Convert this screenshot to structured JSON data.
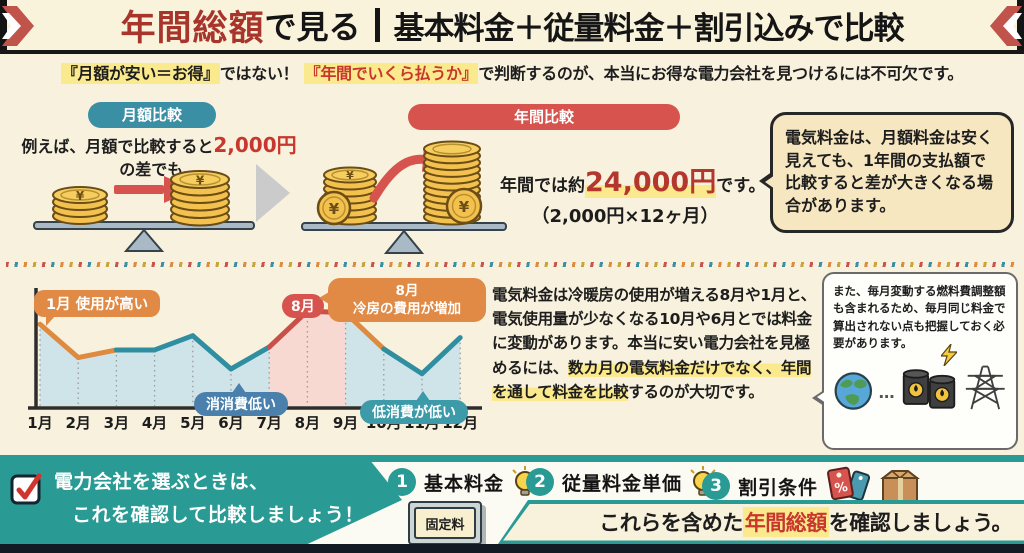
{
  "header": {
    "title_em": "年間総額",
    "title_rest": "で見る",
    "title_right": "基本料金＋従量料金＋割引込みで比較"
  },
  "intro": {
    "hl1": "『月額が安い＝お得』",
    "mid": "ではない！ ",
    "hl2": "『年間でいくら払うか』",
    "rest": "で判断するのが、本当にお得な電力会社を見つけるには不可欠です。"
  },
  "monthly": {
    "badge": "月額比較",
    "line1_pre": "例えば、月額で比較すると",
    "line1_em": "2,000円",
    "line2": "の差でも、"
  },
  "annual": {
    "badge": "年間比較",
    "result_pre": "年間では約",
    "result_em": "24,000円",
    "result_post": "です。",
    "calc": "（2,000円×12ヶ月）"
  },
  "bubble_top": {
    "text": "電気料金は、月額料金は安く見えても、1年間の支払額で比較すると差が大きくなる場合があります。"
  },
  "chart_data": {
    "type": "line",
    "title": "",
    "xlabel": "",
    "ylabel": "",
    "x": [
      "1月",
      "2月",
      "3月",
      "4月",
      "5月",
      "6月",
      "7月",
      "8月",
      "9月",
      "10月",
      "11月",
      "12月"
    ],
    "values": [
      86,
      51,
      59,
      59,
      74,
      39,
      62,
      100,
      98,
      60,
      34,
      72
    ],
    "ylim": [
      0,
      110
    ],
    "grid": "dotted-vertical",
    "legend": "none",
    "area_fill": "fill_blue",
    "highlight_fill": {
      "from": 6,
      "to": 8,
      "color": "fill_pink"
    },
    "segment_colors": [
      "orange",
      "orange",
      "teal",
      "teal",
      "teal",
      "teal",
      "red",
      "red",
      "orange",
      "teal",
      "teal"
    ]
  },
  "chart_notes": {
    "jan": "1月 使用が高い",
    "aug_badge": "8月",
    "aug_line1": "8月",
    "aug_line2": "冷房の費用が増加",
    "june": "消消費低い",
    "nov": "低消費が低い"
  },
  "season_para": {
    "pre": "電気料金は冷暖房の使用が増える8月や1月と、電気使用量が少なくなる10月や6月とでは料金に変動があります。本当に安い電力会社を見極めるには、",
    "highlight": "数カ月の電気料金だけでなく、年間を通して料金を比較",
    "post": "するのが大切です。"
  },
  "bubble_fuel": {
    "text": "また、毎月変動する燃料費調整額も含まれるため、毎月同じ料金で算出されない点も把握しておく必要があります。"
  },
  "footer": {
    "banner_line1": "電力会社を選ぶときは、",
    "banner_line2": "これを確認して比較しましょう！",
    "items": [
      {
        "num": "1",
        "label": "基本料金"
      },
      {
        "num": "2",
        "label": "従量料金単価"
      },
      {
        "num": "3",
        "label": "割引条件"
      }
    ],
    "plaque": "固定料",
    "note_pre": "これらを含めた",
    "note_em": "年間総額",
    "note_post": "を確認しましょう。"
  },
  "icons": {
    "yen": "¥",
    "percent": "%",
    "dots": "…"
  },
  "colors": {
    "orange": "#de8a3f",
    "teal": "#2f8fa0",
    "red": "#c94f47",
    "fill_blue": "#cfe4e9",
    "fill_pink": "#f7d9d2",
    "axis": "#2d2d2d",
    "grid": "#9a9a9a",
    "accent_teal": "#2a9a94",
    "accent_red": "#c8372d",
    "highlight": "#fbe98e"
  }
}
